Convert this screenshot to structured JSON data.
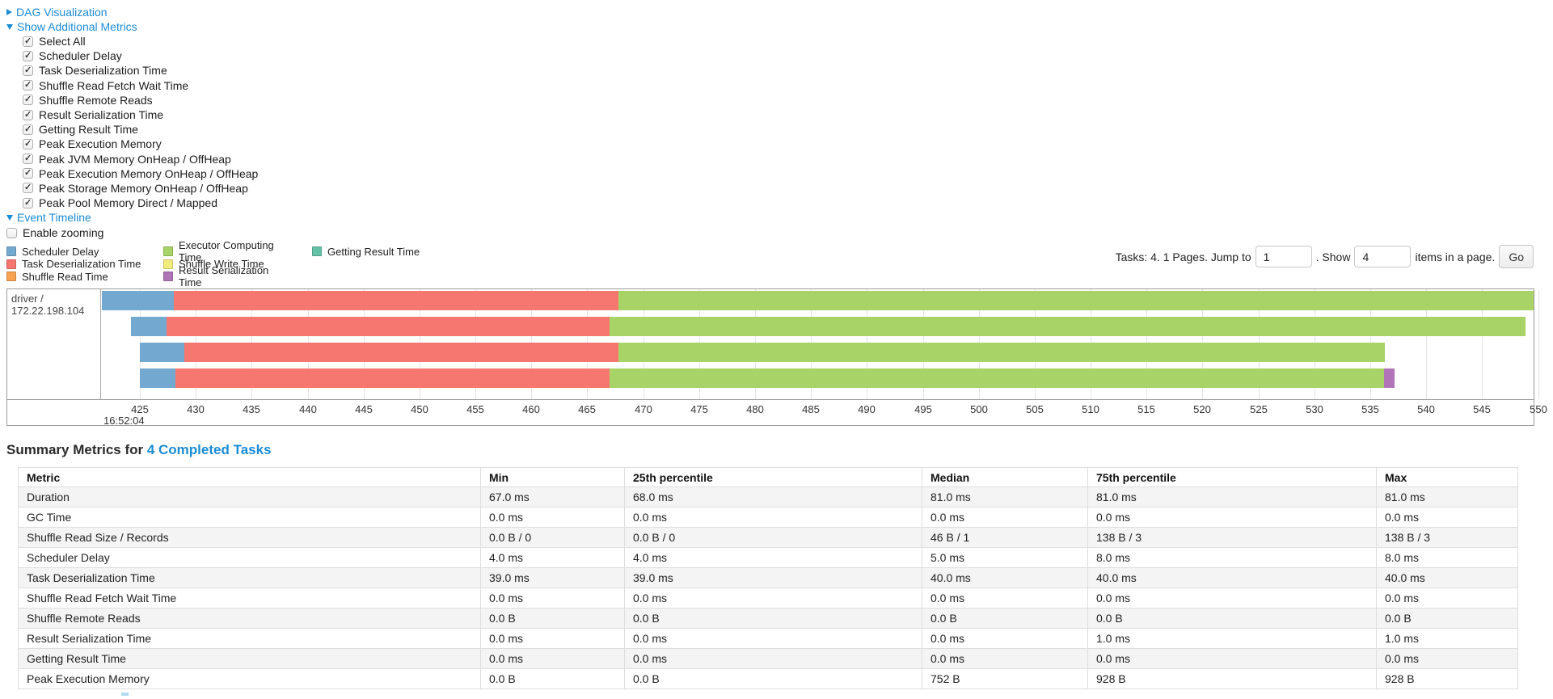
{
  "page": {
    "link_color": "#1a8cd4"
  },
  "toggles": {
    "dag": {
      "label": "DAG Visualization",
      "state": "collapsed"
    },
    "metrics": {
      "label": "Show Additional Metrics",
      "state": "expanded"
    },
    "timeline": {
      "label": "Event Timeline",
      "state": "expanded"
    }
  },
  "metrics_checkboxes": [
    {
      "label": "Select All",
      "checked": true
    },
    {
      "label": "Scheduler Delay",
      "checked": true
    },
    {
      "label": "Task Deserialization Time",
      "checked": true
    },
    {
      "label": "Shuffle Read Fetch Wait Time",
      "checked": true
    },
    {
      "label": "Shuffle Remote Reads",
      "checked": true
    },
    {
      "label": "Result Serialization Time",
      "checked": true
    },
    {
      "label": "Getting Result Time",
      "checked": true
    },
    {
      "label": "Peak Execution Memory",
      "checked": true
    },
    {
      "label": "Peak JVM Memory OnHeap / OffHeap",
      "checked": true
    },
    {
      "label": "Peak Execution Memory OnHeap / OffHeap",
      "checked": true
    },
    {
      "label": "Peak Storage Memory OnHeap / OffHeap",
      "checked": true
    },
    {
      "label": "Peak Pool Memory Direct / Mapped",
      "checked": true
    }
  ],
  "enable_zooming": {
    "label": "Enable zooming",
    "checked": false
  },
  "legend": {
    "columns": [
      [
        {
          "label": "Scheduler Delay",
          "key": "scheduler_delay"
        },
        {
          "label": "Task Deserialization Time",
          "key": "task_deserialization"
        },
        {
          "label": "Shuffle Read Time",
          "key": "shuffle_read"
        }
      ],
      [
        {
          "label": "Executor Computing Time",
          "key": "executor_computing"
        },
        {
          "label": "Shuffle Write Time",
          "key": "shuffle_write"
        },
        {
          "label": "Result Serialization Time",
          "key": "result_serialization"
        }
      ],
      [
        {
          "label": "Getting Result Time",
          "key": "getting_result"
        }
      ]
    ]
  },
  "pagination": {
    "tasks_text": "Tasks: 4. 1 Pages. Jump to",
    "jump_value": "1",
    "show_text": ". Show",
    "show_value": "4",
    "items_text": "items in a page.",
    "go_label": "Go"
  },
  "chart_data": {
    "type": "timeline",
    "row_label": "driver / 172.22.198.104",
    "x_axis": {
      "domain_start": 421.6,
      "domain_end": 549.6,
      "tick_start": 425,
      "tick_end": 550,
      "tick_step": 5,
      "major_label": "16:52:04",
      "units": "ms offset within 16:52:04"
    },
    "series_colors": {
      "scheduler_delay": "#73A9D1",
      "task_deserialization": "#F6776F",
      "shuffle_read": "#F8A351",
      "executor_computing": "#A8D366",
      "shuffle_write": "#F3EB7B",
      "result_serialization": "#B175B7",
      "getting_result": "#65C2A7"
    },
    "tasks": [
      {
        "segments": [
          {
            "name": "scheduler_delay",
            "start": 421.6,
            "end": 428.0
          },
          {
            "name": "task_deserialization",
            "start": 428.0,
            "end": 467.8
          },
          {
            "name": "executor_computing",
            "start": 467.8,
            "end": 552.5
          }
        ]
      },
      {
        "segments": [
          {
            "name": "scheduler_delay",
            "start": 424.2,
            "end": 427.4
          },
          {
            "name": "task_deserialization",
            "start": 427.4,
            "end": 467.0
          },
          {
            "name": "executor_computing",
            "start": 467.0,
            "end": 548.9
          }
        ]
      },
      {
        "segments": [
          {
            "name": "scheduler_delay",
            "start": 425.0,
            "end": 429.0
          },
          {
            "name": "task_deserialization",
            "start": 429.0,
            "end": 467.8
          },
          {
            "name": "executor_computing",
            "start": 467.8,
            "end": 536.3
          }
        ]
      },
      {
        "segments": [
          {
            "name": "scheduler_delay",
            "start": 425.0,
            "end": 428.2
          },
          {
            "name": "task_deserialization",
            "start": 428.2,
            "end": 467.0
          },
          {
            "name": "executor_computing",
            "start": 467.0,
            "end": 536.2
          },
          {
            "name": "result_serialization",
            "start": 536.2,
            "end": 537.2
          }
        ]
      }
    ]
  },
  "summary": {
    "title_prefix": "Summary Metrics for ",
    "title_link": "4 Completed Tasks",
    "table": {
      "headers": [
        "Metric",
        "Min",
        "25th percentile",
        "Median",
        "75th percentile",
        "Max"
      ],
      "rows": [
        [
          "Duration",
          "67.0 ms",
          "68.0 ms",
          "81.0 ms",
          "81.0 ms",
          "81.0 ms"
        ],
        [
          "GC Time",
          "0.0 ms",
          "0.0 ms",
          "0.0 ms",
          "0.0 ms",
          "0.0 ms"
        ],
        [
          "Shuffle Read Size / Records",
          "0.0 B / 0",
          "0.0 B / 0",
          "46 B / 1",
          "138 B / 3",
          "138 B / 3"
        ],
        [
          "Scheduler Delay",
          "4.0 ms",
          "4.0 ms",
          "5.0 ms",
          "8.0 ms",
          "8.0 ms"
        ],
        [
          "Task Deserialization Time",
          "39.0 ms",
          "39.0 ms",
          "40.0 ms",
          "40.0 ms",
          "40.0 ms"
        ],
        [
          "Shuffle Read Fetch Wait Time",
          "0.0 ms",
          "0.0 ms",
          "0.0 ms",
          "0.0 ms",
          "0.0 ms"
        ],
        [
          "Shuffle Remote Reads",
          "0.0 B",
          "0.0 B",
          "0.0 B",
          "0.0 B",
          "0.0 B"
        ],
        [
          "Result Serialization Time",
          "0.0 ms",
          "0.0 ms",
          "0.0 ms",
          "1.0 ms",
          "1.0 ms"
        ],
        [
          "Getting Result Time",
          "0.0 ms",
          "0.0 ms",
          "0.0 ms",
          "0.0 ms",
          "0.0 ms"
        ],
        [
          "Peak Execution Memory",
          "0.0 B",
          "0.0 B",
          "752 B",
          "928 B",
          "928 B"
        ]
      ]
    }
  }
}
